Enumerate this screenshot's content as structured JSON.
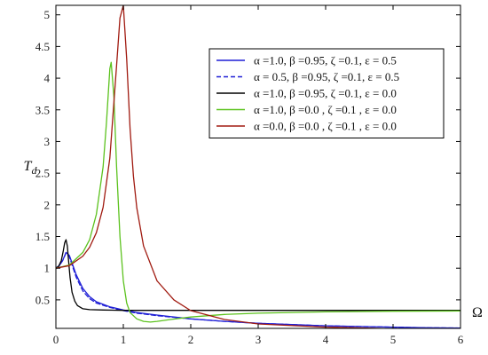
{
  "chart_data": {
    "type": "line",
    "xlabel": "Ω",
    "ylabel": "Td",
    "xlim": [
      0,
      6
    ],
    "ylim": [
      0.05,
      5.15
    ],
    "xticks": [
      "0",
      "1",
      "2",
      "3",
      "4",
      "5",
      "6"
    ],
    "yticks": [
      "0.5",
      "1",
      "1.5",
      "2",
      "2.5",
      "3",
      "3.5",
      "4",
      "4.5",
      "5"
    ],
    "grid": false,
    "legend_position": "top-right",
    "series": [
      {
        "name": "α =1.0, β =0.95, ζ =0.1, ε = 0.5",
        "color": "#1f1fd6",
        "dash": "solid",
        "x": [
          0,
          0.05,
          0.1,
          0.15,
          0.2,
          0.25,
          0.3,
          0.4,
          0.5,
          0.6,
          0.8,
          1.0,
          1.2,
          1.5,
          2.0,
          2.5,
          3.0,
          3.5,
          4.0,
          4.5,
          5.0,
          5.5,
          6.0
        ],
        "y": [
          1.0,
          1.04,
          1.12,
          1.25,
          1.2,
          1.05,
          0.9,
          0.68,
          0.55,
          0.47,
          0.39,
          0.34,
          0.3,
          0.26,
          0.2,
          0.16,
          0.13,
          0.11,
          0.09,
          0.08,
          0.07,
          0.06,
          0.055
        ]
      },
      {
        "name": "α = 0.5, β =0.95, ζ =0.1, ε = 0.5",
        "color": "#1f1fd6",
        "dash": "dashed",
        "x": [
          0,
          0.05,
          0.1,
          0.15,
          0.2,
          0.25,
          0.3,
          0.4,
          0.5,
          0.6,
          0.8,
          1.0,
          1.2,
          1.5,
          2.0,
          2.5,
          3.0,
          3.5,
          4.0,
          4.5,
          5.0,
          5.5,
          6.0
        ],
        "y": [
          1.0,
          1.04,
          1.12,
          1.24,
          1.18,
          1.02,
          0.86,
          0.64,
          0.52,
          0.45,
          0.38,
          0.33,
          0.29,
          0.25,
          0.2,
          0.16,
          0.13,
          0.11,
          0.09,
          0.08,
          0.07,
          0.06,
          0.055
        ]
      },
      {
        "name": "α =1.0, β =0.95, ζ =0.1, ε = 0.0",
        "color": "#000000",
        "dash": "solid",
        "x": [
          0,
          0.04,
          0.08,
          0.11,
          0.13,
          0.15,
          0.17,
          0.19,
          0.21,
          0.24,
          0.28,
          0.32,
          0.4,
          0.5,
          0.7,
          1.0,
          2.0,
          3.0,
          4.0,
          5.0,
          6.0
        ],
        "y": [
          1.0,
          1.03,
          1.12,
          1.28,
          1.4,
          1.45,
          1.35,
          1.1,
          0.85,
          0.62,
          0.48,
          0.41,
          0.36,
          0.345,
          0.34,
          0.335,
          0.335,
          0.335,
          0.335,
          0.335,
          0.335
        ]
      },
      {
        "name": "α =1.0, β =0.0 , ζ =0.1 , ε = 0.0",
        "color": "#5cc21e",
        "dash": "solid",
        "x": [
          0,
          0.2,
          0.4,
          0.5,
          0.6,
          0.7,
          0.75,
          0.8,
          0.82,
          0.86,
          0.9,
          0.95,
          1.0,
          1.05,
          1.1,
          1.2,
          1.3,
          1.4,
          1.5,
          1.7,
          2.0,
          2.5,
          3.0,
          4.0,
          5.0,
          6.0
        ],
        "y": [
          1.0,
          1.05,
          1.25,
          1.45,
          1.85,
          2.6,
          3.3,
          4.15,
          4.25,
          3.7,
          2.6,
          1.5,
          0.8,
          0.45,
          0.3,
          0.2,
          0.16,
          0.15,
          0.16,
          0.19,
          0.23,
          0.27,
          0.29,
          0.31,
          0.32,
          0.325
        ]
      },
      {
        "name": "α =0.0, β =0.0 , ζ =0.1 , ε = 0.0",
        "color": "#a01a10",
        "dash": "solid",
        "x": [
          0,
          0.2,
          0.4,
          0.5,
          0.6,
          0.7,
          0.8,
          0.9,
          0.95,
          1.0,
          1.05,
          1.1,
          1.15,
          1.2,
          1.3,
          1.5,
          1.75,
          2.0,
          2.5,
          3.0,
          4.0,
          5.0,
          6.0
        ],
        "y": [
          1.0,
          1.04,
          1.19,
          1.33,
          1.56,
          1.96,
          2.74,
          4.2,
          4.95,
          5.15,
          4.3,
          3.2,
          2.45,
          1.95,
          1.35,
          0.8,
          0.5,
          0.33,
          0.19,
          0.12,
          0.07,
          0.045,
          0.03
        ]
      }
    ]
  }
}
